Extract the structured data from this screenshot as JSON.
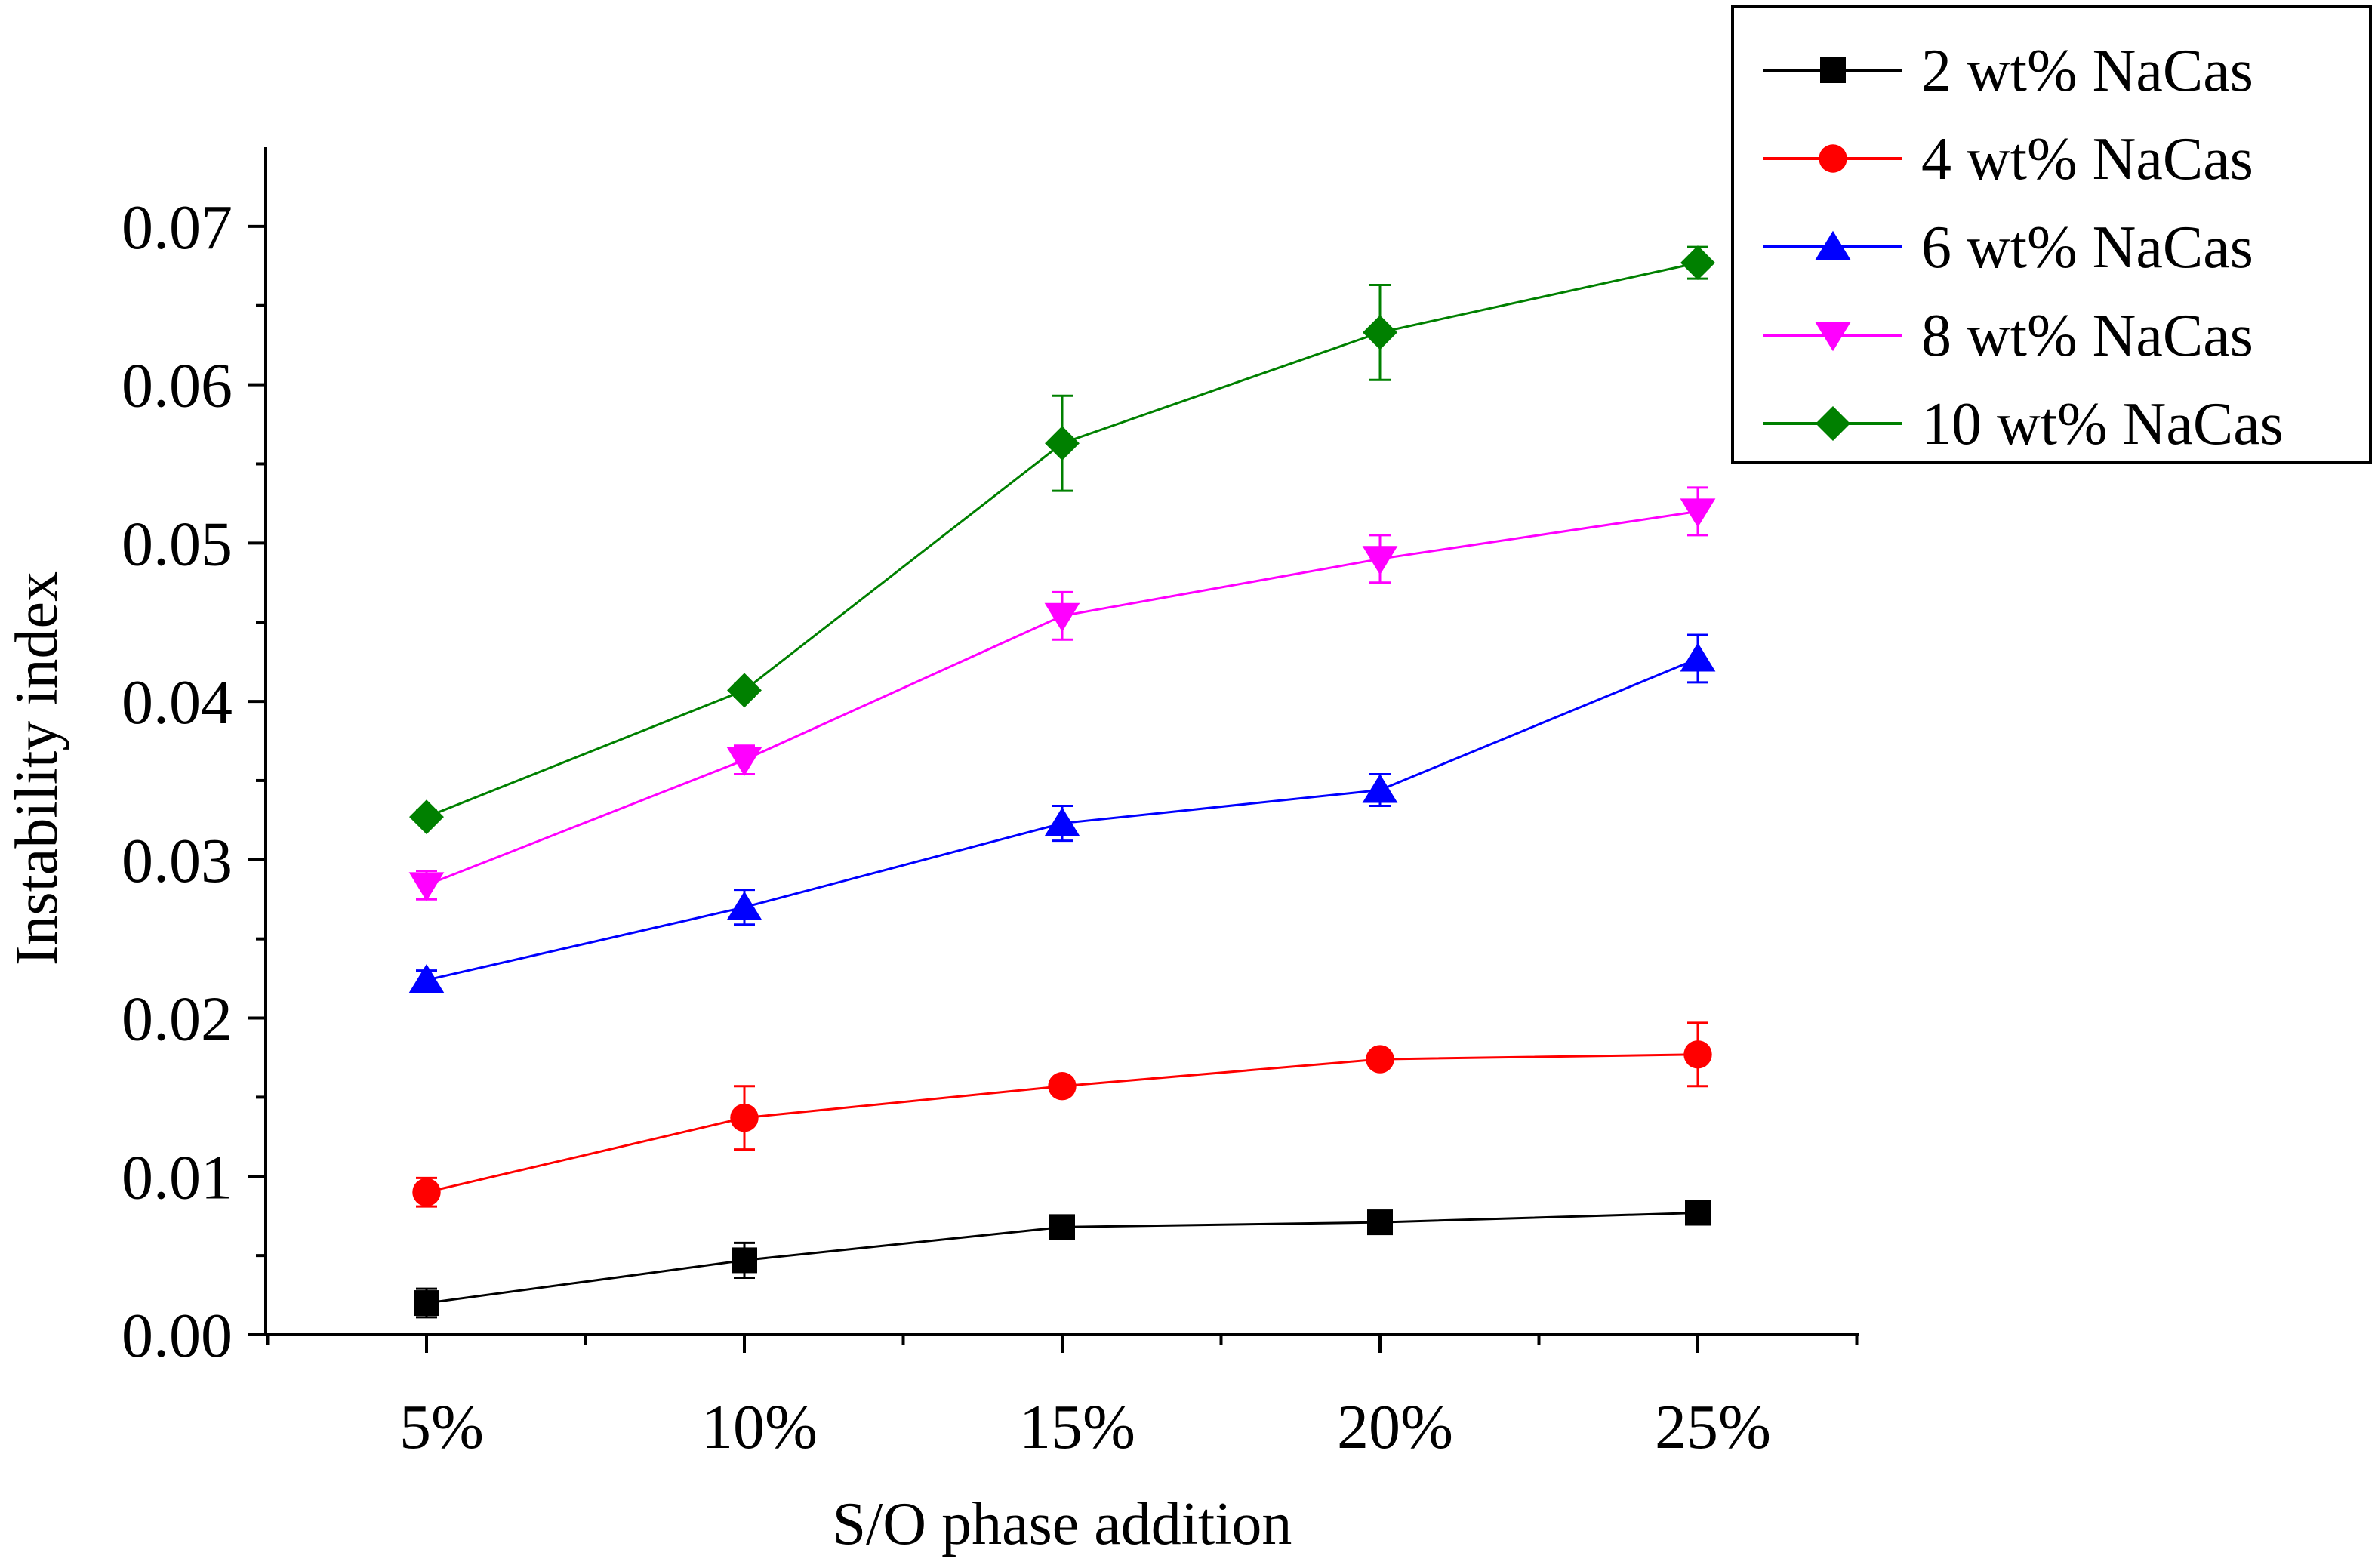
{
  "chart_data": {
    "type": "line",
    "title": "",
    "xlabel": "S/O phase addition",
    "ylabel": "Instability index",
    "categories": [
      "5%",
      "10%",
      "15%",
      "20%",
      "25%"
    ],
    "ylim": [
      0,
      0.075
    ],
    "yticks": [
      {
        "value": 0.0,
        "label": "0.00"
      },
      {
        "value": 0.01,
        "label": "0.01"
      },
      {
        "value": 0.02,
        "label": "0.02"
      },
      {
        "value": 0.03,
        "label": "0.03"
      },
      {
        "value": 0.04,
        "label": "0.04"
      },
      {
        "value": 0.05,
        "label": "0.05"
      },
      {
        "value": 0.06,
        "label": "0.06"
      },
      {
        "value": 0.07,
        "label": "0.07"
      }
    ],
    "legend_position": "top-right",
    "grid": false,
    "series": [
      {
        "name": "2 wt% NaCas",
        "color": "#000000",
        "marker": "square",
        "values": [
          0.002,
          0.0047,
          0.0068,
          0.0071,
          0.0077
        ],
        "errors": [
          0.0009,
          0.0011,
          0.0004,
          0.0004,
          0.0004
        ]
      },
      {
        "name": "4 wt% NaCas",
        "color": "#ff0000",
        "marker": "circle",
        "values": [
          0.009,
          0.0137,
          0.0157,
          0.0174,
          0.0177
        ],
        "errors": [
          0.0009,
          0.002,
          0.0004,
          0.0004,
          0.002
        ]
      },
      {
        "name": "6 wt% NaCas",
        "color": "#0000ff",
        "marker": "triangle-up",
        "values": [
          0.0224,
          0.027,
          0.0323,
          0.0344,
          0.0427
        ],
        "errors": [
          0.0006,
          0.0011,
          0.0011,
          0.001,
          0.0015
        ]
      },
      {
        "name": "8 wt% NaCas",
        "color": "#ff00ff",
        "marker": "triangle-down",
        "values": [
          0.0284,
          0.0363,
          0.0454,
          0.049,
          0.052
        ],
        "errors": [
          0.0009,
          0.0009,
          0.0015,
          0.0015,
          0.0015
        ]
      },
      {
        "name": "10 wt% NaCas",
        "color": "#008000",
        "marker": "diamond",
        "values": [
          0.0327,
          0.0407,
          0.0563,
          0.0633,
          0.0677
        ],
        "errors": [
          0.0004,
          0.0004,
          0.003,
          0.003,
          0.001
        ]
      }
    ]
  }
}
